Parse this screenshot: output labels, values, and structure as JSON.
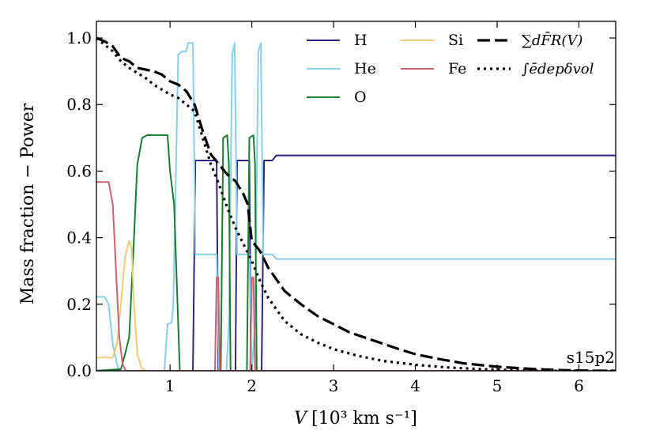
{
  "chart_data": {
    "type": "line",
    "title": "",
    "xlabel_var": "V",
    "xlabel_unit": "[10³ km s⁻¹]",
    "ylabel": "Mass fraction − Power",
    "xlim": [
      0.1,
      6.45
    ],
    "ylim": [
      0.0,
      1.05
    ],
    "xticks": [
      1,
      2,
      3,
      4,
      5,
      6
    ],
    "xtick_labels": [
      "1",
      "2",
      "3",
      "4",
      "5",
      "6"
    ],
    "yticks": [
      0.0,
      0.2,
      0.4,
      0.6,
      0.8,
      1.0
    ],
    "ytick_labels": [
      "0.0",
      "0.2",
      "0.4",
      "0.6",
      "0.8",
      "1.0"
    ],
    "grid": false,
    "annotation": "s15p2",
    "legend_position": "top-right",
    "legend": [
      {
        "label": "H",
        "series": "H"
      },
      {
        "label": "He",
        "series": "He"
      },
      {
        "label": "O",
        "series": "O"
      },
      {
        "label": "Si",
        "series": "Si"
      },
      {
        "label": "Fe",
        "series": "Fe"
      },
      {
        "label": "∑dF̄R(V)",
        "series": "dFR"
      },
      {
        "label": "∫ēdepδvol",
        "series": "edep"
      }
    ],
    "series": [
      {
        "name": "H",
        "color": "#2c2580",
        "dash": "",
        "width": 2,
        "points": [
          [
            0.1,
            0.0
          ],
          [
            1.28,
            0.0
          ],
          [
            1.31,
            0.632
          ],
          [
            1.57,
            0.632
          ],
          [
            1.59,
            0.0
          ],
          [
            1.8,
            0.0
          ],
          [
            1.82,
            0.632
          ],
          [
            1.97,
            0.632
          ],
          [
            1.99,
            0.0
          ],
          [
            2.12,
            0.0
          ],
          [
            2.15,
            0.632
          ],
          [
            2.25,
            0.632
          ],
          [
            2.3,
            0.647
          ],
          [
            6.45,
            0.647
          ]
        ]
      },
      {
        "name": "He",
        "color": "#87ceeb",
        "dash": "",
        "width": 2,
        "points": [
          [
            0.1,
            0.222
          ],
          [
            0.2,
            0.222
          ],
          [
            0.25,
            0.2
          ],
          [
            0.3,
            0.08
          ],
          [
            0.36,
            0.01
          ],
          [
            0.4,
            0.0
          ],
          [
            0.93,
            0.0
          ],
          [
            0.97,
            0.14
          ],
          [
            1.02,
            0.145
          ],
          [
            1.04,
            0.2
          ],
          [
            1.1,
            0.95
          ],
          [
            1.15,
            0.96
          ],
          [
            1.2,
            0.96
          ],
          [
            1.22,
            0.985
          ],
          [
            1.28,
            0.985
          ],
          [
            1.31,
            0.35
          ],
          [
            1.57,
            0.35
          ],
          [
            1.6,
            0.0
          ],
          [
            1.69,
            0.0
          ],
          [
            1.72,
            0.14
          ],
          [
            1.76,
            0.95
          ],
          [
            1.79,
            0.985
          ],
          [
            1.82,
            0.35
          ],
          [
            1.97,
            0.35
          ],
          [
            2.0,
            0.0
          ],
          [
            2.04,
            0.14
          ],
          [
            2.08,
            0.96
          ],
          [
            2.11,
            0.985
          ],
          [
            2.14,
            0.35
          ],
          [
            2.25,
            0.35
          ],
          [
            2.3,
            0.336
          ],
          [
            6.45,
            0.336
          ]
        ]
      },
      {
        "name": "O",
        "color": "#1e7b34",
        "dash": "",
        "width": 2,
        "points": [
          [
            0.1,
            0.0
          ],
          [
            0.4,
            0.005
          ],
          [
            0.45,
            0.05
          ],
          [
            0.5,
            0.1
          ],
          [
            0.55,
            0.35
          ],
          [
            0.6,
            0.62
          ],
          [
            0.66,
            0.7
          ],
          [
            0.72,
            0.708
          ],
          [
            0.97,
            0.708
          ],
          [
            1.0,
            0.6
          ],
          [
            1.05,
            0.5
          ],
          [
            1.12,
            0.0
          ],
          [
            1.62,
            0.0
          ],
          [
            1.65,
            0.7
          ],
          [
            1.7,
            0.708
          ],
          [
            1.72,
            0.62
          ],
          [
            1.74,
            0.0
          ],
          [
            1.94,
            0.0
          ],
          [
            1.97,
            0.7
          ],
          [
            2.02,
            0.708
          ],
          [
            2.04,
            0.62
          ],
          [
            2.06,
            0.0
          ],
          [
            6.45,
            0.0
          ]
        ]
      },
      {
        "name": "Si",
        "color": "#e8cf7a",
        "dash": "",
        "width": 2,
        "points": [
          [
            0.1,
            0.04
          ],
          [
            0.3,
            0.04
          ],
          [
            0.35,
            0.08
          ],
          [
            0.4,
            0.2
          ],
          [
            0.45,
            0.34
          ],
          [
            0.5,
            0.39
          ],
          [
            0.53,
            0.37
          ],
          [
            0.56,
            0.2
          ],
          [
            0.6,
            0.05
          ],
          [
            0.65,
            0.01
          ],
          [
            0.7,
            0.0
          ],
          [
            6.45,
            0.0
          ]
        ]
      },
      {
        "name": "Fe",
        "color": "#d06070",
        "dash": "",
        "width": 2,
        "points": [
          [
            0.1,
            0.567
          ],
          [
            0.25,
            0.567
          ],
          [
            0.3,
            0.5
          ],
          [
            0.34,
            0.3
          ],
          [
            0.38,
            0.1
          ],
          [
            0.42,
            0.02
          ],
          [
            0.46,
            0.0
          ],
          [
            1.55,
            0.0
          ],
          [
            1.57,
            0.28
          ],
          [
            1.59,
            0.28
          ],
          [
            1.61,
            0.0
          ],
          [
            1.98,
            0.0
          ],
          [
            2.0,
            0.28
          ],
          [
            2.02,
            0.28
          ],
          [
            2.04,
            0.0
          ],
          [
            6.45,
            0.0
          ]
        ]
      },
      {
        "name": "dFR",
        "color": "#000000",
        "dash": "16 6",
        "width": 3.2,
        "points": [
          [
            0.1,
            1.0
          ],
          [
            0.2,
            0.99
          ],
          [
            0.3,
            0.975
          ],
          [
            0.4,
            0.94
          ],
          [
            0.5,
            0.93
          ],
          [
            0.6,
            0.91
          ],
          [
            0.7,
            0.905
          ],
          [
            0.8,
            0.9
          ],
          [
            0.9,
            0.89
          ],
          [
            1.0,
            0.87
          ],
          [
            1.1,
            0.86
          ],
          [
            1.2,
            0.84
          ],
          [
            1.3,
            0.8
          ],
          [
            1.4,
            0.72
          ],
          [
            1.5,
            0.65
          ],
          [
            1.6,
            0.62
          ],
          [
            1.7,
            0.59
          ],
          [
            1.8,
            0.57
          ],
          [
            1.9,
            0.53
          ],
          [
            1.95,
            0.5
          ],
          [
            2.0,
            0.39
          ],
          [
            2.1,
            0.36
          ],
          [
            2.2,
            0.31
          ],
          [
            2.4,
            0.24
          ],
          [
            2.6,
            0.2
          ],
          [
            2.8,
            0.165
          ],
          [
            3.0,
            0.14
          ],
          [
            3.2,
            0.115
          ],
          [
            3.5,
            0.09
          ],
          [
            3.8,
            0.065
          ],
          [
            4.0,
            0.05
          ],
          [
            4.3,
            0.035
          ],
          [
            4.6,
            0.022
          ],
          [
            5.0,
            0.012
          ],
          [
            5.4,
            0.006
          ],
          [
            5.8,
            0.002
          ],
          [
            6.2,
            0.0
          ],
          [
            6.45,
            0.0
          ]
        ]
      },
      {
        "name": "edep",
        "color": "#000000",
        "dash": "3 5",
        "width": 3.2,
        "points": [
          [
            0.1,
            1.0
          ],
          [
            0.2,
            0.98
          ],
          [
            0.3,
            0.96
          ],
          [
            0.4,
            0.93
          ],
          [
            0.5,
            0.91
          ],
          [
            0.6,
            0.895
          ],
          [
            0.7,
            0.88
          ],
          [
            0.8,
            0.86
          ],
          [
            0.9,
            0.845
          ],
          [
            1.0,
            0.83
          ],
          [
            1.1,
            0.82
          ],
          [
            1.2,
            0.8
          ],
          [
            1.3,
            0.78
          ],
          [
            1.4,
            0.7
          ],
          [
            1.5,
            0.62
          ],
          [
            1.6,
            0.56
          ],
          [
            1.7,
            0.49
          ],
          [
            1.8,
            0.43
          ],
          [
            1.9,
            0.38
          ],
          [
            2.0,
            0.33
          ],
          [
            2.1,
            0.27
          ],
          [
            2.2,
            0.22
          ],
          [
            2.4,
            0.15
          ],
          [
            2.6,
            0.11
          ],
          [
            2.8,
            0.085
          ],
          [
            3.0,
            0.065
          ],
          [
            3.3,
            0.045
          ],
          [
            3.6,
            0.03
          ],
          [
            4.0,
            0.018
          ],
          [
            4.4,
            0.01
          ],
          [
            4.8,
            0.005
          ],
          [
            5.2,
            0.002
          ],
          [
            5.6,
            0.0
          ],
          [
            6.45,
            0.0
          ]
        ]
      }
    ]
  }
}
